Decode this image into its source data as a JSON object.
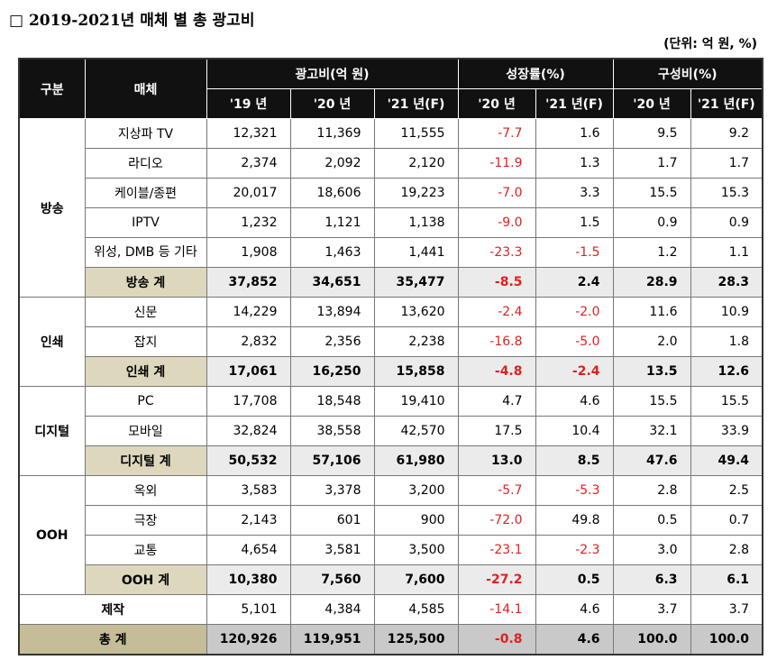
{
  "title": "□ 2019-2021년 매체 별 총 광고비",
  "unit": "(단위: 억 원, %)",
  "table": {
    "header": {
      "group": "구분",
      "media": "매체",
      "ad_spend": "광고비(억 원)",
      "growth": "성장률(%)",
      "share": "구성비(%)",
      "sub": [
        "'19 년",
        "'20 년",
        "'21 년(F)",
        "'20 년",
        "'21 년(F)",
        "'20 년",
        "'21 년(F)"
      ]
    },
    "sections": [
      {
        "name": "방송",
        "rows": [
          {
            "label": "지상파 TV",
            "values": [
              "12,321",
              "11,369",
              "11,555",
              "-7.7",
              "1.6",
              "9.5",
              "9.2"
            ]
          },
          {
            "label": "라디오",
            "values": [
              "2,374",
              "2,092",
              "2,120",
              "-11.9",
              "1.3",
              "1.7",
              "1.7"
            ]
          },
          {
            "label": "케이블/종편",
            "values": [
              "20,017",
              "18,606",
              "19,223",
              "-7.0",
              "3.3",
              "15.5",
              "15.3"
            ]
          },
          {
            "label": "IPTV",
            "values": [
              "1,232",
              "1,121",
              "1,138",
              "-9.0",
              "1.5",
              "0.9",
              "0.9"
            ]
          },
          {
            "label": "위성, DMB 등 기타",
            "values": [
              "1,908",
              "1,463",
              "1,441",
              "-23.3",
              "-1.5",
              "1.2",
              "1.1"
            ]
          }
        ],
        "subtotal": {
          "label": "방송 계",
          "values": [
            "37,852",
            "34,651",
            "35,477",
            "-8.5",
            "2.4",
            "28.9",
            "28.3"
          ]
        }
      },
      {
        "name": "인쇄",
        "rows": [
          {
            "label": "신문",
            "values": [
              "14,229",
              "13,894",
              "13,620",
              "-2.4",
              "-2.0",
              "11.6",
              "10.9"
            ]
          },
          {
            "label": "잡지",
            "values": [
              "2,832",
              "2,356",
              "2,238",
              "-16.8",
              "-5.0",
              "2.0",
              "1.8"
            ]
          }
        ],
        "subtotal": {
          "label": "인쇄 계",
          "values": [
            "17,061",
            "16,250",
            "15,858",
            "-4.8",
            "-2.4",
            "13.5",
            "12.6"
          ]
        }
      },
      {
        "name": "디지털",
        "rows": [
          {
            "label": "PC",
            "values": [
              "17,708",
              "18,548",
              "19,410",
              "4.7",
              "4.6",
              "15.5",
              "15.5"
            ]
          },
          {
            "label": "모바일",
            "values": [
              "32,824",
              "38,558",
              "42,570",
              "17.5",
              "10.4",
              "32.1",
              "33.9"
            ]
          }
        ],
        "subtotal": {
          "label": "디지털 계",
          "values": [
            "50,532",
            "57,106",
            "61,980",
            "13.0",
            "8.5",
            "47.6",
            "49.4"
          ]
        }
      },
      {
        "name": "OOH",
        "rows": [
          {
            "label": "옥외",
            "values": [
              "3,583",
              "3,378",
              "3,200",
              "-5.7",
              "-5.3",
              "2.8",
              "2.5"
            ]
          },
          {
            "label": "극장",
            "values": [
              "2,143",
              "601",
              "900",
              "-72.0",
              "49.8",
              "0.5",
              "0.7"
            ]
          },
          {
            "label": "교통",
            "values": [
              "4,654",
              "3,581",
              "3,500",
              "-23.1",
              "-2.3",
              "3.0",
              "2.8"
            ]
          }
        ],
        "subtotal": {
          "label": "OOH 계",
          "values": [
            "10,380",
            "7,560",
            "7,600",
            "-27.2",
            "0.5",
            "6.3",
            "6.1"
          ]
        }
      }
    ],
    "production": {
      "label": "제작",
      "values": [
        "5,101",
        "4,384",
        "4,585",
        "-14.1",
        "4.6",
        "3.7",
        "3.7"
      ]
    },
    "total": {
      "label": "총 계",
      "values": [
        "120,926",
        "119,951",
        "125,500",
        "-0.8",
        "4.6",
        "100.0",
        "100.0"
      ]
    }
  }
}
